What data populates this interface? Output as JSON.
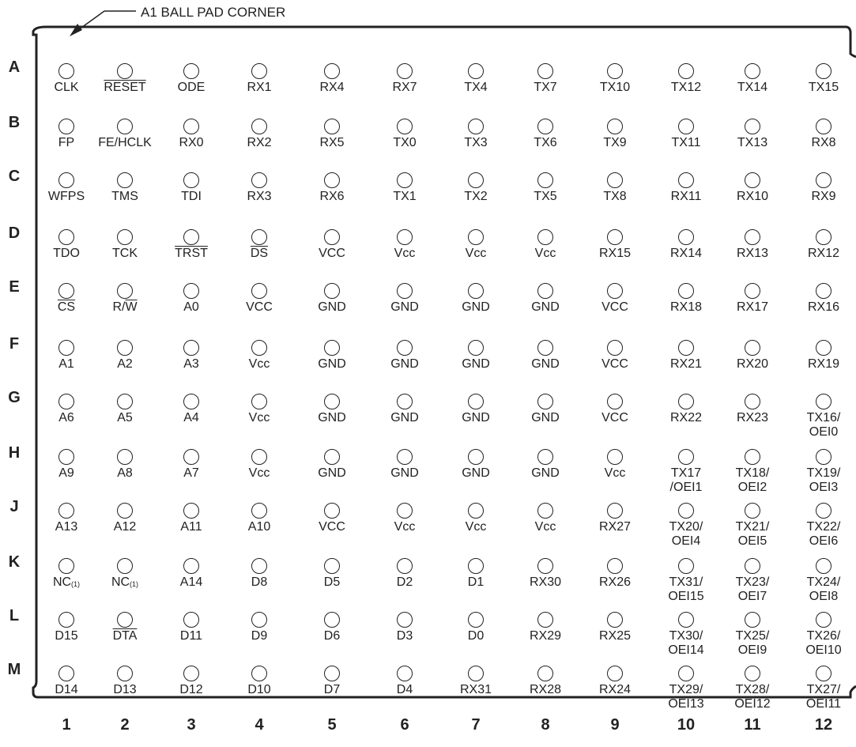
{
  "title": "A1 BALL PAD CORNER",
  "rows": [
    "A",
    "B",
    "C",
    "D",
    "E",
    "F",
    "G",
    "H",
    "J",
    "K",
    "L",
    "M"
  ],
  "cols": [
    "1",
    "2",
    "3",
    "4",
    "5",
    "6",
    "7",
    "8",
    "9",
    "10",
    "11",
    "12"
  ],
  "pins": [
    [
      "CLK",
      "~RESET~",
      "ODE",
      "RX1",
      "RX4",
      "RX7",
      "TX4",
      "TX7",
      "TX10",
      "TX12",
      "TX14",
      "TX15"
    ],
    [
      "FP",
      "FE/HCLK",
      "RX0",
      "RX2",
      "RX5",
      "TX0",
      "TX3",
      "TX6",
      "TX9",
      "TX11",
      "TX13",
      "RX8"
    ],
    [
      "WFPS",
      "TMS",
      "TDI",
      "RX3",
      "RX6",
      "TX1",
      "TX2",
      "TX5",
      "TX8",
      "RX11",
      "RX10",
      "RX9"
    ],
    [
      "TDO",
      "TCK",
      "~TRST~",
      "~DS~",
      "VCC",
      "Vcc",
      "Vcc",
      "Vcc",
      "RX15",
      "RX14",
      "RX13",
      "RX12"
    ],
    [
      "~CS~",
      "R/~W~",
      "A0",
      "VCC",
      "GND",
      "GND",
      "GND",
      "GND",
      "VCC",
      "RX18",
      "RX17",
      "RX16"
    ],
    [
      "A1",
      "A2",
      "A3",
      "Vcc",
      "GND",
      "GND",
      "GND",
      "GND",
      "VCC",
      "RX21",
      "RX20",
      "RX19"
    ],
    [
      "A6",
      "A5",
      "A4",
      "Vcc",
      "GND",
      "GND",
      "GND",
      "GND",
      "VCC",
      "RX22",
      "RX23",
      "TX16/\nOEI0"
    ],
    [
      "A9",
      "A8",
      "A7",
      "Vcc",
      "GND",
      "GND",
      "GND",
      "GND",
      "Vcc",
      "TX17\n/OEI1",
      "TX18/\nOEI2",
      "TX19/\nOEI3"
    ],
    [
      "A13",
      "A12",
      "A11",
      "A10",
      "VCC",
      "Vcc",
      "Vcc",
      "Vcc",
      "RX27",
      "TX20/\nOEI4",
      "TX21/\nOEI5",
      "TX22/\nOEI6"
    ],
    [
      "NC^(1)",
      "NC^(1)",
      "A14",
      "D8",
      "D5",
      "D2",
      "D1",
      "RX30",
      "RX26",
      "TX31/\nOEI15",
      "TX23/\nOEI7",
      "TX24/\nOEI8"
    ],
    [
      "D15",
      "~DTA~",
      "D11",
      "D9",
      "D6",
      "D3",
      "D0",
      "RX29",
      "RX25",
      "TX30/\nOEI14",
      "TX25/\nOEI9",
      "TX26/\nOEI10"
    ],
    [
      "D14",
      "D13",
      "D12",
      "D10",
      "D7",
      "D4",
      "RX31",
      "RX28",
      "RX24",
      "TX29/\nOEI13",
      "TX28/\nOEI12",
      "TX27/\nOEI11"
    ]
  ]
}
